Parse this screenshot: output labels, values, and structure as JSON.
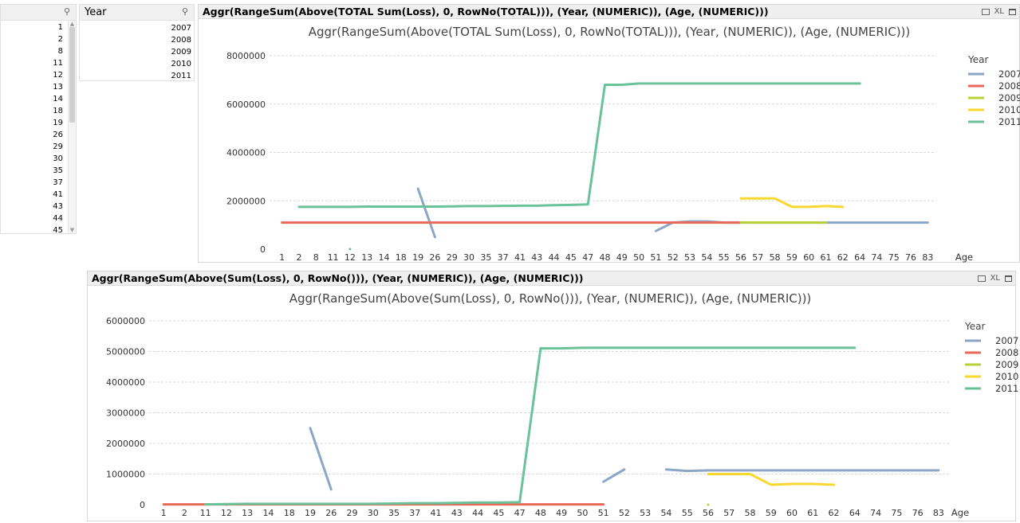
{
  "age_listbox": {
    "items": [
      "1",
      "2",
      "8",
      "11",
      "12",
      "13",
      "14",
      "18",
      "19",
      "26",
      "29",
      "30",
      "35",
      "37",
      "41",
      "43",
      "44",
      "45"
    ]
  },
  "year_listbox": {
    "title": "Year",
    "items": [
      "2007",
      "2008",
      "2009",
      "2010",
      "2011"
    ]
  },
  "icons": {
    "search": "search-icon",
    "print": "print-icon",
    "excel": "excel-icon",
    "maximize": "maximize-icon"
  },
  "chart1": {
    "caption": "Aggr(RangeSum(Above(TOTAL Sum(Loss), 0, RowNo(TOTAL))), (Year, (NUMERIC)), (Age, (NUMERIC)))",
    "xl_label": "XL"
  },
  "chart2": {
    "caption": "Aggr(RangeSum(Above(Sum(Loss), 0, RowNo())), (Year, (NUMERIC)), (Age, (NUMERIC)))",
    "xl_label": "XL"
  },
  "chart_data": [
    {
      "type": "line",
      "title": "Aggr(RangeSum(Above(TOTAL Sum(Loss), 0, RowNo(TOTAL))), (Year, (NUMERIC)), (Age, (NUMERIC)))",
      "xlabel": "Age",
      "ylabel": "",
      "categories": [
        "1",
        "2",
        "8",
        "11",
        "12",
        "13",
        "14",
        "18",
        "19",
        "26",
        "29",
        "30",
        "35",
        "37",
        "41",
        "43",
        "44",
        "45",
        "47",
        "48",
        "49",
        "50",
        "51",
        "52",
        "53",
        "54",
        "55",
        "56",
        "57",
        "58",
        "59",
        "60",
        "61",
        "62",
        "64",
        "74",
        "75",
        "76",
        "83"
      ],
      "yticks": [
        0,
        2000000,
        4000000,
        6000000,
        8000000
      ],
      "ylim": [
        0,
        8000000
      ],
      "grid": true,
      "legend": {
        "title": "Year",
        "position": "right"
      },
      "series": [
        {
          "name": "2007",
          "color": "#8ca6c6",
          "values": [
            null,
            null,
            null,
            null,
            0,
            null,
            null,
            null,
            2500000,
            500000,
            null,
            null,
            null,
            null,
            null,
            null,
            null,
            null,
            null,
            null,
            null,
            null,
            750000,
            1100000,
            1150000,
            1150000,
            1100000,
            1100000,
            1100000,
            1100000,
            1100000,
            1100000,
            1100000,
            1100000,
            1100000,
            1100000,
            1100000,
            1100000,
            1100000
          ]
        },
        {
          "name": "2008",
          "color": "#e8695a",
          "values": [
            1100000,
            1100000,
            1100000,
            1100000,
            1100000,
            1100000,
            1100000,
            1100000,
            1100000,
            1100000,
            1100000,
            1100000,
            1100000,
            1100000,
            1100000,
            1100000,
            1100000,
            1100000,
            1100000,
            1100000,
            1100000,
            1100000,
            1100000,
            1100000,
            1100000,
            1100000,
            1100000,
            1100000,
            null,
            null,
            null,
            null,
            null,
            null,
            null,
            null,
            null,
            null,
            null
          ]
        },
        {
          "name": "2009",
          "color": "#b8d138",
          "values": [
            null,
            null,
            null,
            null,
            null,
            null,
            null,
            null,
            null,
            null,
            null,
            null,
            null,
            null,
            null,
            null,
            null,
            null,
            null,
            null,
            null,
            null,
            null,
            null,
            null,
            null,
            null,
            1100000,
            1100000,
            1100000,
            1100000,
            1100000,
            1100000,
            null,
            null,
            null,
            null,
            null,
            null
          ]
        },
        {
          "name": "2010",
          "color": "#f7d730",
          "values": [
            null,
            null,
            null,
            null,
            null,
            null,
            null,
            null,
            null,
            null,
            null,
            null,
            null,
            null,
            null,
            null,
            null,
            null,
            null,
            null,
            null,
            null,
            null,
            null,
            null,
            null,
            null,
            2100000,
            2100000,
            2100000,
            1750000,
            1750000,
            1780000,
            1750000,
            null,
            null,
            null,
            null,
            null
          ]
        },
        {
          "name": "2011",
          "color": "#6ac299",
          "values": [
            null,
            1750000,
            1750000,
            1750000,
            1750000,
            1760000,
            1760000,
            1760000,
            1760000,
            1760000,
            1770000,
            1780000,
            1780000,
            1790000,
            1800000,
            1800000,
            1820000,
            1830000,
            1850000,
            6800000,
            6800000,
            6850000,
            6850000,
            6850000,
            6850000,
            6850000,
            6850000,
            6850000,
            6850000,
            6850000,
            6850000,
            6850000,
            6850000,
            6850000,
            6850000,
            null,
            null,
            null,
            null
          ]
        }
      ]
    },
    {
      "type": "line",
      "title": "Aggr(RangeSum(Above(Sum(Loss), 0, RowNo())), (Year, (NUMERIC)), (Age, (NUMERIC)))",
      "xlabel": "Age",
      "ylabel": "",
      "categories": [
        "1",
        "2",
        "11",
        "12",
        "13",
        "14",
        "18",
        "19",
        "26",
        "29",
        "30",
        "35",
        "37",
        "41",
        "43",
        "44",
        "45",
        "47",
        "48",
        "49",
        "50",
        "51",
        "52",
        "53",
        "54",
        "55",
        "56",
        "57",
        "58",
        "59",
        "60",
        "61",
        "62",
        "64",
        "74",
        "75",
        "76",
        "83"
      ],
      "yticks": [
        0,
        1000000,
        2000000,
        3000000,
        4000000,
        5000000,
        6000000
      ],
      "ylim": [
        0,
        6000000
      ],
      "grid": true,
      "legend": {
        "title": "Year",
        "position": "right"
      },
      "series": [
        {
          "name": "2007",
          "color": "#8ca6c6",
          "values": [
            null,
            null,
            null,
            0,
            null,
            null,
            null,
            2500000,
            500000,
            null,
            null,
            null,
            null,
            null,
            null,
            null,
            null,
            null,
            null,
            null,
            null,
            750000,
            1150000,
            null,
            1150000,
            1100000,
            1120000,
            1120000,
            1120000,
            1120000,
            1120000,
            1120000,
            1120000,
            1120000,
            1120000,
            1120000,
            1120000,
            1120000
          ]
        },
        {
          "name": "2008",
          "color": "#e8695a",
          "values": [
            10000,
            10000,
            10000,
            10000,
            10000,
            10000,
            10000,
            10000,
            10000,
            10000,
            10000,
            10000,
            10000,
            10000,
            10000,
            10000,
            10000,
            10000,
            10000,
            10000,
            10000,
            10000,
            null,
            null,
            null,
            null,
            null,
            null,
            null,
            null,
            null,
            null,
            null,
            null,
            null,
            null,
            null,
            null
          ]
        },
        {
          "name": "2009",
          "color": "#b8d138",
          "values": [
            null,
            null,
            null,
            null,
            null,
            null,
            null,
            null,
            null,
            null,
            null,
            null,
            null,
            null,
            null,
            null,
            null,
            null,
            null,
            null,
            null,
            null,
            null,
            null,
            null,
            null,
            0,
            null,
            null,
            null,
            null,
            null,
            null,
            null,
            null,
            null,
            null,
            null
          ]
        },
        {
          "name": "2010",
          "color": "#f7d730",
          "values": [
            null,
            null,
            null,
            null,
            null,
            null,
            null,
            null,
            null,
            null,
            null,
            null,
            null,
            null,
            null,
            null,
            null,
            null,
            null,
            null,
            null,
            null,
            null,
            null,
            null,
            null,
            1000000,
            1000000,
            1000000,
            650000,
            680000,
            680000,
            650000,
            null,
            null,
            null,
            null,
            null
          ]
        },
        {
          "name": "2011",
          "color": "#6ac299",
          "values": [
            null,
            null,
            10000,
            20000,
            30000,
            30000,
            30000,
            30000,
            30000,
            30000,
            30000,
            40000,
            50000,
            50000,
            60000,
            70000,
            70000,
            80000,
            5100000,
            5100000,
            5120000,
            5120000,
            5120000,
            5120000,
            5120000,
            5120000,
            5120000,
            5120000,
            5120000,
            5120000,
            5120000,
            5120000,
            5120000,
            5120000,
            null,
            null,
            null,
            null
          ]
        }
      ]
    }
  ]
}
